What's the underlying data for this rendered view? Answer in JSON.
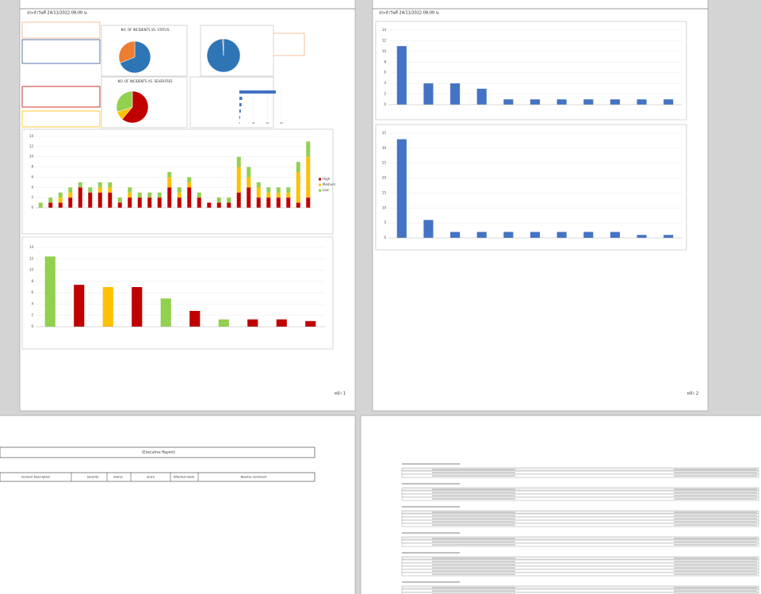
{
  "pages": {
    "header_1": "ประจำวันที่ 24/11/2022 08:00 น.",
    "header_2": "ประจำวันที่ 24/11/2022 08:00 น.",
    "footer_1": "หน้า 1",
    "footer_2": "หน้า 2",
    "report_title": "(Executive Report)",
    "table_columns": [
      "Incident Description",
      "Severity",
      "Status",
      "Score",
      "Affected Hosts",
      "Resolve Comment"
    ]
  },
  "chart_data": [
    {
      "type": "pie",
      "title": "NO. OF INCIDENTS VS. STATUS",
      "values": [
        69,
        31
      ],
      "colors": [
        "#2e75b6",
        "#ed7d31"
      ]
    },
    {
      "type": "pie",
      "values": [
        99,
        1
      ],
      "colors": [
        "#2e75b6",
        "#ed7d31"
      ]
    },
    {
      "type": "pie",
      "title": "NO. OF INCIDENTS VS. SEVERITIES",
      "values": [
        61,
        9,
        30
      ],
      "colors": [
        "#c00000",
        "#ffc000",
        "#92d050"
      ]
    },
    {
      "type": "bar",
      "orientation": "horizontal",
      "values": [
        52,
        4,
        3,
        2,
        1
      ],
      "color": "#4472c4",
      "xlim": [
        0,
        60
      ],
      "xticks": [
        0,
        20,
        40,
        60
      ]
    },
    {
      "type": "bar",
      "stacked": true,
      "categories": [
        null,
        null,
        null,
        null,
        null,
        null,
        null,
        null,
        null,
        null,
        null,
        null,
        null,
        null,
        null,
        null,
        null,
        null,
        null,
        null,
        null,
        null,
        null,
        null,
        null,
        null,
        null,
        null
      ],
      "series": [
        {
          "name": "High",
          "color": "#c00000",
          "values": [
            0,
            1,
            1,
            2,
            4,
            3,
            3,
            3,
            1,
            2,
            2,
            2,
            2,
            4,
            2,
            4,
            2,
            1,
            1,
            1,
            3,
            4,
            2,
            2,
            2,
            2,
            1,
            2
          ]
        },
        {
          "name": "Medium",
          "color": "#ffc000",
          "values": [
            0,
            0,
            1,
            1,
            0,
            0,
            1,
            1,
            0,
            1,
            0,
            0,
            0,
            2,
            1,
            1,
            0,
            0,
            0,
            0,
            5,
            2,
            2,
            1,
            1,
            1,
            6,
            8
          ]
        },
        {
          "name": "Low",
          "color": "#92d050",
          "values": [
            1,
            1,
            1,
            1,
            1,
            1,
            1,
            1,
            1,
            1,
            1,
            1,
            1,
            1,
            1,
            1,
            1,
            0,
            1,
            1,
            2,
            2,
            1,
            1,
            1,
            1,
            2,
            3
          ]
        }
      ],
      "ylim": [
        0,
        14
      ],
      "yticks": [
        0,
        2,
        4,
        6,
        8,
        10,
        12,
        14
      ],
      "grid": true,
      "legend": "right"
    },
    {
      "type": "bar",
      "values": [
        12.4,
        7.4,
        7,
        7,
        5,
        2.8,
        1.3,
        1.3,
        1.3,
        1
      ],
      "colors": [
        "#92d050",
        "#c00000",
        "#ffc000",
        "#c00000",
        "#92d050",
        "#c00000",
        "#92d050",
        "#c00000",
        "#c00000",
        "#c00000"
      ],
      "ylim": [
        0,
        14
      ],
      "yticks": [
        0,
        2,
        4,
        6,
        8,
        10,
        12,
        14
      ],
      "grid": true
    },
    {
      "type": "bar",
      "values": [
        11,
        4,
        4,
        3,
        1,
        1,
        1,
        1,
        1,
        1,
        1
      ],
      "color": "#4472c4",
      "ylim": [
        0,
        14
      ],
      "yticks": [
        0,
        2,
        4,
        6,
        8,
        10,
        12,
        14
      ],
      "grid": true
    },
    {
      "type": "bar",
      "values": [
        33,
        6,
        2,
        2,
        2,
        2,
        2,
        2,
        2,
        1,
        1
      ],
      "color": "#4472c4",
      "ylim": [
        0,
        35
      ],
      "yticks": [
        0,
        5,
        10,
        15,
        20,
        25,
        30,
        35
      ],
      "grid": true
    }
  ]
}
